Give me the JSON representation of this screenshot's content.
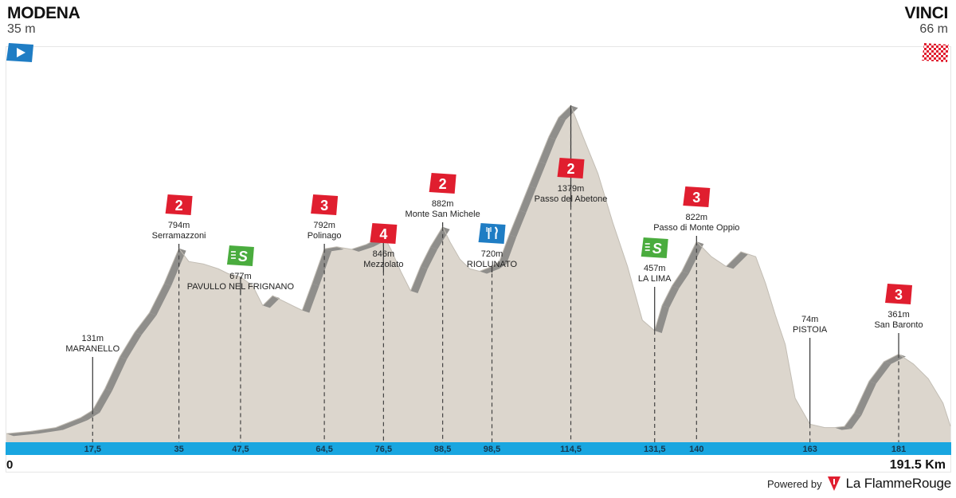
{
  "start": {
    "name": "MODENA",
    "elevation": "35 m",
    "icon": "start-arrow-icon",
    "color": "#1f7dc4"
  },
  "finish": {
    "name": "VINCI",
    "elevation": "66 m",
    "icon": "checkered-flag-icon",
    "color": "#e01e2f"
  },
  "distance_start": "0",
  "distance_end": "191.5 Km",
  "powered_by": "Powered by",
  "brand": "La FlammeRouge",
  "colors": {
    "terrain": "#dcd6cd",
    "climb_shade": "#8f8e8b",
    "km_bar": "#19a6e0",
    "category": "#e01e2f",
    "sprint": "#4aac3e",
    "feed": "#1f7dc4"
  },
  "chart_data": {
    "type": "area",
    "title": "",
    "xlabel": "",
    "ylabel": "",
    "xlim": [
      0,
      191.5
    ],
    "ylim": [
      0,
      1550
    ],
    "grid": false,
    "profile": {
      "x": [
        0,
        5,
        10,
        15,
        17.5,
        20,
        23,
        26,
        29,
        32,
        35,
        37,
        40,
        43,
        45,
        47.5,
        50,
        52,
        54,
        56,
        58,
        60,
        62,
        64.5,
        67,
        70,
        73,
        76.5,
        78,
        80,
        82,
        84,
        86,
        88.5,
        90,
        92,
        94,
        96,
        98.5,
        100,
        102,
        104,
        106,
        108,
        110,
        112,
        114.5,
        117,
        120,
        123,
        126,
        129,
        131.5,
        133,
        135,
        137,
        140,
        143,
        146,
        149,
        152,
        154,
        156,
        158,
        160,
        163,
        166,
        168,
        170,
        172,
        175,
        178,
        181,
        184,
        187,
        190,
        191.5
      ],
      "y": [
        35,
        45,
        60,
        100,
        131,
        220,
        350,
        450,
        530,
        650,
        794,
        740,
        730,
        710,
        690,
        677,
        640,
        560,
        600,
        580,
        560,
        540,
        650,
        792,
        800,
        790,
        810,
        846,
        790,
        700,
        620,
        720,
        800,
        882,
        820,
        750,
        710,
        700,
        720,
        740,
        850,
        950,
        1050,
        1150,
        1250,
        1330,
        1379,
        1250,
        1100,
        900,
        720,
        500,
        457,
        560,
        640,
        700,
        822,
        760,
        720,
        780,
        760,
        650,
        520,
        400,
        180,
        74,
        60,
        60,
        65,
        120,
        250,
        330,
        361,
        320,
        260,
        160,
        66
      ]
    },
    "markers": [
      {
        "km": 17.5,
        "km_label": "17,5",
        "elevation": "131m",
        "name": "MARANELLO",
        "type": "none"
      },
      {
        "km": 35,
        "km_label": "35",
        "elevation": "794m",
        "name": "Serramazzoni",
        "type": "climb",
        "category": "2"
      },
      {
        "km": 47.5,
        "km_label": "47,5",
        "elevation": "677m",
        "name": "PAVULLO NEL FRIGNANO",
        "type": "sprint"
      },
      {
        "km": 64.5,
        "km_label": "64,5",
        "elevation": "792m",
        "name": "Polinago",
        "type": "climb",
        "category": "3"
      },
      {
        "km": 76.5,
        "km_label": "76,5",
        "elevation": "846m",
        "name": "Mezzolato",
        "type": "climb",
        "category": "4"
      },
      {
        "km": 88.5,
        "km_label": "88,5",
        "elevation": "882m",
        "name": "Monte San Michele",
        "type": "climb",
        "category": "2"
      },
      {
        "km": 98.5,
        "km_label": "98,5",
        "elevation": "720m",
        "name": "RIOLUNATO",
        "type": "feed"
      },
      {
        "km": 114.5,
        "km_label": "114,5",
        "elevation": "1379m",
        "name": "Passo del Abetone",
        "type": "climb",
        "category": "2"
      },
      {
        "km": 131.5,
        "km_label": "131,5",
        "elevation": "457m",
        "name": "LA LIMA",
        "type": "sprint"
      },
      {
        "km": 140,
        "km_label": "140",
        "elevation": "822m",
        "name": "Passo di Monte Oppio",
        "type": "climb",
        "category": "3"
      },
      {
        "km": 163,
        "km_label": "163",
        "elevation": "74m",
        "name": "PISTOIA",
        "type": "none"
      },
      {
        "km": 181,
        "km_label": "181",
        "elevation": "361m",
        "name": "San Baronto",
        "type": "climb",
        "category": "3"
      }
    ]
  }
}
